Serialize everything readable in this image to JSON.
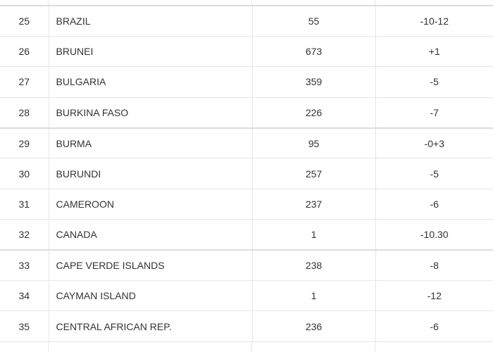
{
  "table": {
    "rows": [
      {
        "num": "25",
        "country": "BRAZIL",
        "code": "55",
        "diff": "-10-12"
      },
      {
        "num": "26",
        "country": "BRUNEI",
        "code": "673",
        "diff": "+1"
      },
      {
        "num": "27",
        "country": "BULGARIA",
        "code": "359",
        "diff": "-5"
      },
      {
        "num": "28",
        "country": "BURKINA FASO",
        "code": "226",
        "diff": "-7"
      },
      {
        "num": "29",
        "country": "BURMA",
        "code": "95",
        "diff": "-0+3"
      },
      {
        "num": "30",
        "country": "BURUNDI",
        "code": "257",
        "diff": "-5"
      },
      {
        "num": "31",
        "country": "CAMEROON",
        "code": "237",
        "diff": "-6"
      },
      {
        "num": "32",
        "country": "CANADA",
        "code": "1",
        "diff": "-10.30"
      },
      {
        "num": "33",
        "country": "CAPE VERDE ISLANDS",
        "code": "238",
        "diff": "-8"
      },
      {
        "num": "34",
        "country": "CAYMAN ISLAND",
        "code": "1",
        "diff": "-12"
      },
      {
        "num": "35",
        "country": "CENTRAL AFRICAN REP.",
        "code": "236",
        "diff": "-6"
      }
    ]
  }
}
